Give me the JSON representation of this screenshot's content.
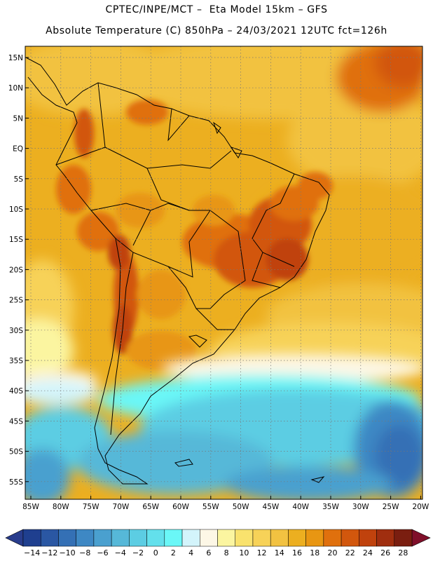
{
  "header": {
    "line1": "CPTEC/INPE/MCT –  Eta Model 15km – GFS",
    "line2": "Absolute Temperature (C) 850hPa – 24/03/2021 12UTC fct=126h"
  },
  "map": {
    "lat_labels": [
      "15N",
      "10N",
      "5N",
      "EQ",
      "5S",
      "10S",
      "15S",
      "20S",
      "25S",
      "30S",
      "35S",
      "40S",
      "45S",
      "50S",
      "55S"
    ],
    "lon_labels": [
      "85W",
      "80W",
      "75W",
      "70W",
      "65W",
      "60W",
      "55W",
      "50W",
      "45W",
      "40W",
      "35W",
      "30W",
      "25W",
      "20W"
    ],
    "gridlines": "dotted"
  },
  "colorbar": {
    "labels": [
      "-14",
      "-12",
      "-10",
      "-8",
      "-6",
      "-4",
      "-2",
      "0",
      "2",
      "4",
      "6",
      "8",
      "10",
      "12",
      "14",
      "16",
      "18",
      "20",
      "22",
      "24",
      "26",
      "28"
    ],
    "colors": [
      "#1f3f8f",
      "#2a57a3",
      "#3470b5",
      "#3e88c4",
      "#4aa0cf",
      "#56b8d8",
      "#5ccde3",
      "#63e0ec",
      "#6af7f7",
      "#d3f4fb",
      "#fdf7e6",
      "#fbf5a0",
      "#f9e26d",
      "#f7d258",
      "#f2c241",
      "#ecaf20",
      "#e89612",
      "#e0700d",
      "#d2570d",
      "#c0420d",
      "#a02e0f",
      "#7a1e10"
    ],
    "end_low": "#283c8c",
    "end_high": "#800f2a"
  }
}
